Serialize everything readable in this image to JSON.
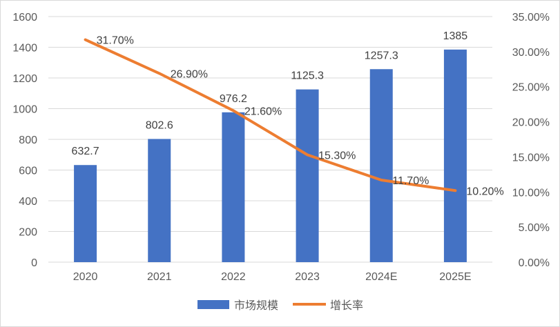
{
  "chart_data": {
    "type": "bar",
    "categories": [
      "2020",
      "2021",
      "2022",
      "2023",
      "2024E",
      "2025E"
    ],
    "series": [
      {
        "name": "市场规模",
        "type": "bar",
        "axis": "left",
        "color": "#4472c4",
        "values": [
          632.7,
          802.6,
          976.2,
          1125.3,
          1257.3,
          1385
        ],
        "labels": [
          "632.7",
          "802.6",
          "976.2",
          "1125.3",
          "1257.3",
          "1385"
        ]
      },
      {
        "name": "增长率",
        "type": "line",
        "axis": "right",
        "color": "#ed7d31",
        "values": [
          0.317,
          0.269,
          0.216,
          0.153,
          0.117,
          0.102
        ],
        "labels": [
          "31.70%",
          "26.90%",
          "21.60%",
          "15.30%",
          "11.70%",
          "10.20%"
        ]
      }
    ],
    "y_left": {
      "lim": [
        0,
        1600
      ],
      "ticks": [
        "0",
        "200",
        "400",
        "600",
        "800",
        "1000",
        "1200",
        "1400",
        "1600"
      ]
    },
    "y_right": {
      "lim": [
        0,
        0.35
      ],
      "ticks": [
        "0.00%",
        "5.00%",
        "10.00%",
        "15.00%",
        "20.00%",
        "25.00%",
        "30.00%",
        "35.00%"
      ]
    },
    "grid": true,
    "gridColor": "#d9d9d9",
    "legend": "bottom-center"
  }
}
